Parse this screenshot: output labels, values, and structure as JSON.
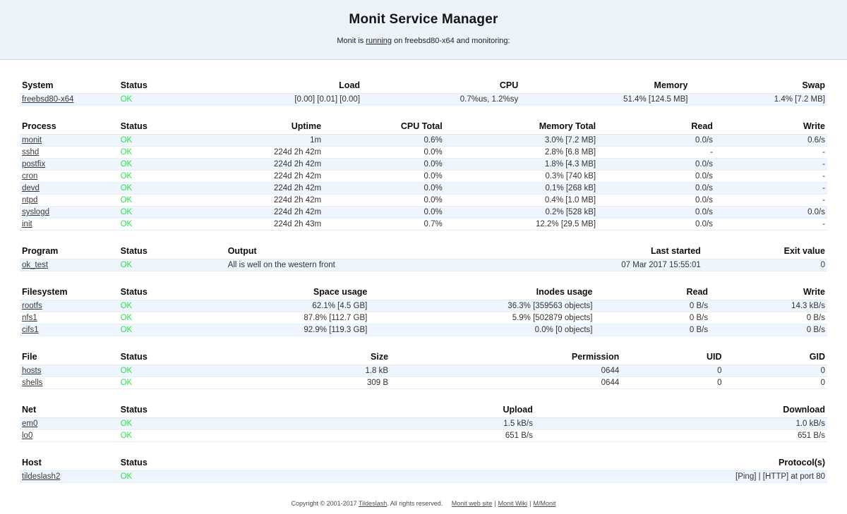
{
  "page": {
    "title": "Monit Service Manager",
    "subtitle_prefix": "Monit is ",
    "subtitle_link": "running",
    "subtitle_suffix": " on freebsd80-x64 and monitoring:"
  },
  "colors": {
    "ok_status": "#2be54b",
    "header_band": "#edf3fb",
    "row_stripe": "#eef5fd"
  },
  "tables": [
    {
      "id": "system",
      "columns": [
        {
          "label": "System",
          "align": "left",
          "width": "12.2%"
        },
        {
          "label": "Status",
          "align": "left",
          "width": "12%"
        },
        {
          "label": "Load",
          "align": "right",
          "width": "18.2%"
        },
        {
          "label": "CPU",
          "align": "right",
          "width": "19.6%"
        },
        {
          "label": "Memory",
          "align": "right",
          "width": "21%"
        },
        {
          "label": "Swap",
          "align": "right",
          "width": "17%"
        }
      ],
      "rows": [
        [
          "freebsd80-x64",
          "OK",
          "[0.00] [0.01] [0.00]",
          "0.7%us, 1.2%sy",
          "51.4% [124.5 MB]",
          "1.4% [7.2 MB]"
        ]
      ]
    },
    {
      "id": "process",
      "columns": [
        {
          "label": "Process",
          "align": "left",
          "width": "12.2%"
        },
        {
          "label": "Status",
          "align": "left",
          "width": "12%"
        },
        {
          "label": "Uptime",
          "align": "right",
          "width": "13.4%"
        },
        {
          "label": "CPU Total",
          "align": "right",
          "width": "15%"
        },
        {
          "label": "Memory Total",
          "align": "right",
          "width": "19%"
        },
        {
          "label": "Read",
          "align": "right",
          "width": "14.5%"
        },
        {
          "label": "Write",
          "align": "right",
          "width": "13.9%"
        }
      ],
      "rows": [
        [
          "monit",
          "OK",
          "1m",
          "0.6%",
          "3.0% [7.2 MB]",
          "0.0/s",
          "0.6/s"
        ],
        [
          "sshd",
          "OK",
          "224d 2h 42m",
          "0.0%",
          "2.8% [6.8 MB]",
          "-",
          "-"
        ],
        [
          "postfix",
          "OK",
          "224d 2h 42m",
          "0.0%",
          "1.8% [4.3 MB]",
          "0.0/s",
          "-"
        ],
        [
          "cron",
          "OK",
          "224d 2h 42m",
          "0.0%",
          "0.3% [740 kB]",
          "0.0/s",
          "-"
        ],
        [
          "devd",
          "OK",
          "224d 2h 42m",
          "0.0%",
          "0.1% [268 kB]",
          "0.0/s",
          "-"
        ],
        [
          "ntpd",
          "OK",
          "224d 2h 42m",
          "0.0%",
          "0.4% [1.0 MB]",
          "0.0/s",
          "-"
        ],
        [
          "syslogd",
          "OK",
          "224d 2h 42m",
          "0.0%",
          "0.2% [528 kB]",
          "0.0/s",
          "0.0/s"
        ],
        [
          "init",
          "OK",
          "224d 2h 43m",
          "0.7%",
          "12.2% [29.5 MB]",
          "0.0/s",
          "-"
        ]
      ]
    },
    {
      "id": "program",
      "columns": [
        {
          "label": "Program",
          "align": "left",
          "width": "12.2%"
        },
        {
          "label": "Status",
          "align": "left",
          "width": "13.3%"
        },
        {
          "label": "Output",
          "align": "left",
          "width": "35%"
        },
        {
          "label": "Last started",
          "align": "right",
          "width": "24.1%"
        },
        {
          "label": "Exit value",
          "align": "right",
          "width": "15.4%"
        }
      ],
      "rows": [
        [
          "ok_test",
          "OK",
          "All is well on the western front",
          "07 Mar 2017 15:55:01",
          "0"
        ]
      ]
    },
    {
      "id": "filesystem",
      "columns": [
        {
          "label": "Filesystem",
          "align": "left",
          "width": "12.2%"
        },
        {
          "label": "Status",
          "align": "left",
          "width": "12%"
        },
        {
          "label": "Space usage",
          "align": "right",
          "width": "19.1%"
        },
        {
          "label": "Inodes usage",
          "align": "right",
          "width": "27.9%"
        },
        {
          "label": "Read",
          "align": "right",
          "width": "14.3%"
        },
        {
          "label": "Write",
          "align": "right",
          "width": "14.5%"
        }
      ],
      "rows": [
        [
          "rootfs",
          "OK",
          "62.1% [4.5 GB]",
          "36.3% [359563 objects]",
          "0 B/s",
          "14.3 kB/s"
        ],
        [
          "nfs1",
          "OK",
          "87.8% [112.7 GB]",
          "5.9% [502879 objects]",
          "0 B/s",
          "0 B/s"
        ],
        [
          "cifs1",
          "OK",
          "92.9% [119.3 GB]",
          "0.0% [0 objects]",
          "0 B/s",
          "0 B/s"
        ]
      ]
    },
    {
      "id": "file",
      "columns": [
        {
          "label": "File",
          "align": "left",
          "width": "12.2%"
        },
        {
          "label": "Status",
          "align": "left",
          "width": "12%"
        },
        {
          "label": "Size",
          "align": "right",
          "width": "21.7%"
        },
        {
          "label": "Permission",
          "align": "right",
          "width": "28.6%"
        },
        {
          "label": "UID",
          "align": "right",
          "width": "12.7%"
        },
        {
          "label": "GID",
          "align": "right",
          "width": "12.8%"
        }
      ],
      "rows": [
        [
          "hosts",
          "OK",
          "1.8 kB",
          "0644",
          "0",
          "0"
        ],
        [
          "shells",
          "OK",
          "309 B",
          "0644",
          "0",
          "0"
        ]
      ]
    },
    {
      "id": "net",
      "columns": [
        {
          "label": "Net",
          "align": "left",
          "width": "12.2%"
        },
        {
          "label": "Status",
          "align": "left",
          "width": "12%"
        },
        {
          "label": "Upload",
          "align": "right",
          "width": "39.6%"
        },
        {
          "label": "Download",
          "align": "right",
          "width": "36.2%"
        }
      ],
      "rows": [
        [
          "em0",
          "OK",
          "1.5 kB/s",
          "1.0 kB/s"
        ],
        [
          "lo0",
          "OK",
          "651 B/s",
          "651 B/s"
        ]
      ]
    },
    {
      "id": "host",
      "columns": [
        {
          "label": "Host",
          "align": "left",
          "width": "12.2%"
        },
        {
          "label": "Status",
          "align": "left",
          "width": "12%"
        },
        {
          "label": "Protocol(s)",
          "align": "right",
          "width": "75.8%"
        }
      ],
      "rows": [
        [
          "tildeslash2",
          "OK",
          "[Ping]  |  [HTTP] at port 80"
        ]
      ]
    }
  ],
  "footer": {
    "copyright_prefix": "Copyright © 2001-2017 ",
    "tildeslash_link": "Tildeslash",
    "copyright_suffix": ". All rights reserved.",
    "links": [
      "Monit web site",
      "Monit Wiki",
      "M/Monit"
    ],
    "separator": "|"
  }
}
